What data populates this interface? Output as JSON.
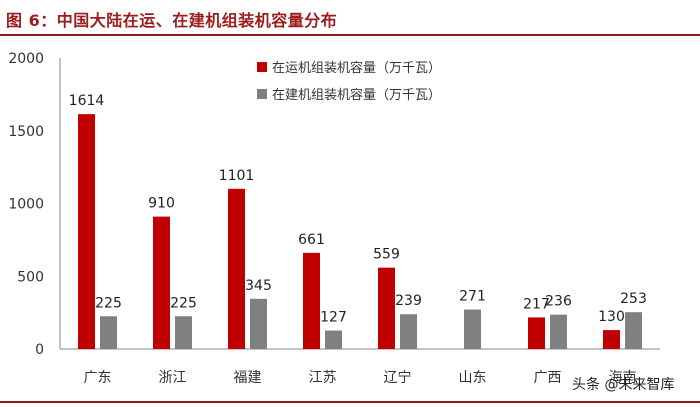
{
  "header": {
    "title": "图 6：中国大陆在运、在建机组装机容量分布"
  },
  "chart_data": {
    "type": "bar",
    "categories": [
      "广东",
      "浙江",
      "福建",
      "江苏",
      "辽宁",
      "山东",
      "广西",
      "海南"
    ],
    "series": [
      {
        "name": "在运机组装机容量（万千瓦）",
        "color": "#c00000",
        "values": [
          1614,
          910,
          1101,
          661,
          559,
          null,
          217,
          130
        ]
      },
      {
        "name": "在建机组装机容量（万千瓦）",
        "color": "#808080",
        "values": [
          225,
          225,
          345,
          127,
          239,
          271,
          236,
          253
        ]
      }
    ],
    "yticks": [
      0,
      500,
      1000,
      1500,
      2000
    ],
    "ylim": [
      0,
      2000
    ],
    "title": "",
    "xlabel": "",
    "ylabel": "",
    "legend_position": "top-right",
    "grid": false
  },
  "watermark": {
    "text": "头条 @未来智库",
    "sub": "未来智库"
  }
}
